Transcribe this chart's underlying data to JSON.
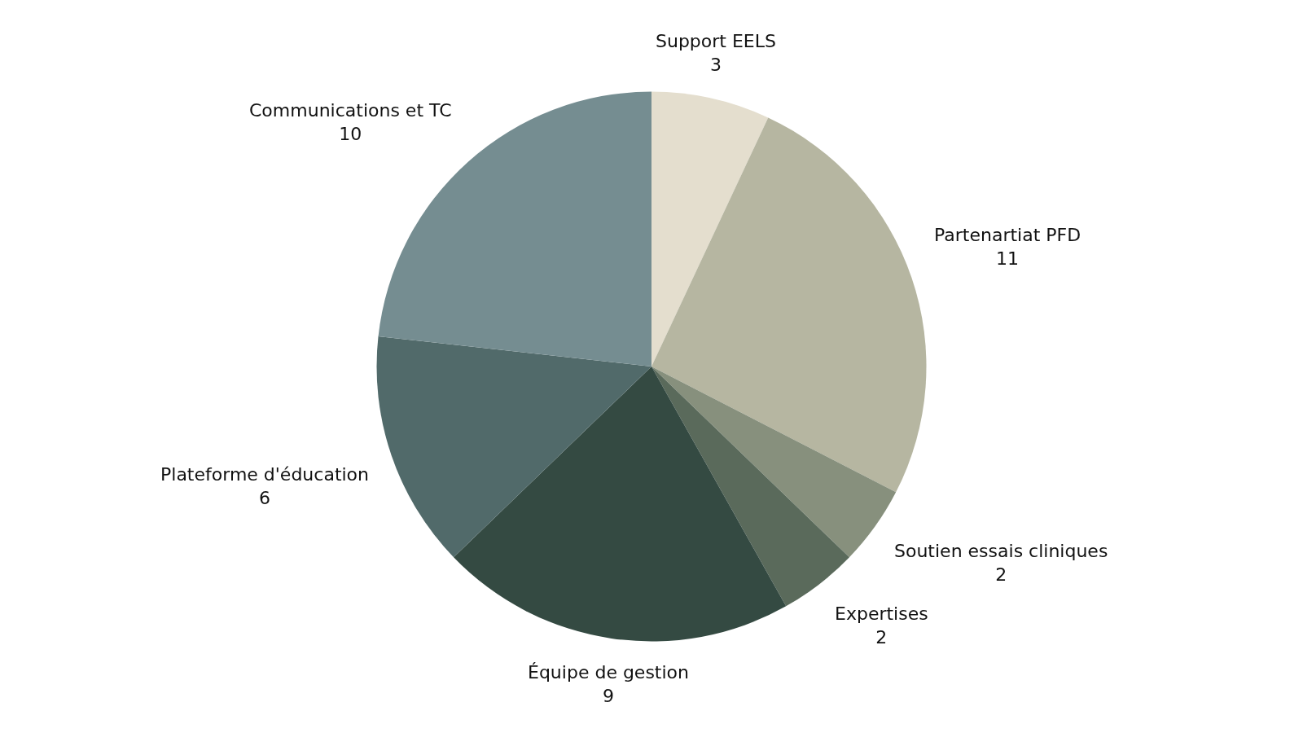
{
  "chart_data": {
    "type": "pie",
    "categories": [
      "Support EELS",
      "Partenartiat PFD",
      "Soutien essais cliniques",
      "Expertises",
      "Équipe de gestion",
      "Plateforme d'éducation",
      "Communications et TC"
    ],
    "values": [
      3,
      11,
      2,
      2,
      9,
      6,
      10
    ],
    "colors": [
      "#e4dece",
      "#b6b6a1",
      "#87907d",
      "#5a6a5b",
      "#344a42",
      "#516a6a",
      "#758d91"
    ],
    "data_labels": true,
    "legend": false
  }
}
